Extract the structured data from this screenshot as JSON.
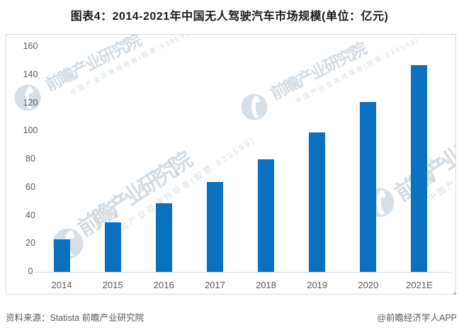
{
  "title": "图表4：2014-2021年中国无人驾驶汽车市场规模(单位：亿元)",
  "watermark": {
    "brand_big": "前瞻产业研究院",
    "brand_small": "中国产业咨询领导者(股票:839599)"
  },
  "footer": {
    "source": "资料来源：Statista 前瞻产业研究院",
    "credit": "@前瞻经济学人APP"
  },
  "decor": {
    "corner_mark": "+"
  },
  "colors": {
    "bar": "#0a70c0",
    "axis": "#d9d9d9",
    "tick_text": "#595959",
    "title_text": "#1a1a1a",
    "watermark": "#c5d0da"
  },
  "chart_data": {
    "type": "bar",
    "title": "图表4：2014-2021年中国无人驾驶汽车市场规模(单位：亿元)",
    "unit": "亿元",
    "categories": [
      "2014",
      "2015",
      "2016",
      "2017",
      "2018",
      "2019",
      "2020",
      "2021E"
    ],
    "values": [
      23,
      35,
      49,
      64,
      80,
      99,
      121,
      147
    ],
    "xlabel": "",
    "ylabel": "",
    "ylim": [
      0,
      160
    ],
    "ytick_step": 20,
    "bar_color": "#0a70c0",
    "grid": false,
    "legend_position": "none"
  }
}
